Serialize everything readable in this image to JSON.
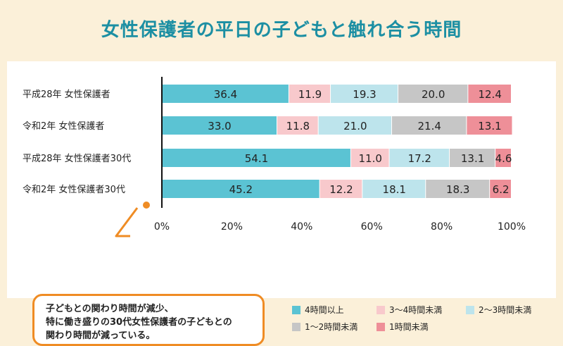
{
  "title": "女性保護者の平日の子どもと触れ合う時間",
  "callout": {
    "line1": "子どもとの関わり時間が減少、",
    "line2": "特に働き盛りの30代女性保護者の子どもとの",
    "line3": "関わり時間が減っている。"
  },
  "chart_data": {
    "type": "bar",
    "orientation": "horizontal-stacked-100",
    "categories": [
      "平成28年 女性保護者",
      "令和2年 女性保護者",
      "平成28年 女性保護者30代",
      "令和2年 女性保護者30代"
    ],
    "series": [
      {
        "name": "4時間以上",
        "color": "#5bc3d3",
        "values": [
          36.4,
          33.0,
          54.1,
          45.2
        ]
      },
      {
        "name": "3〜4時間未満",
        "color": "#f8c9cc",
        "values": [
          11.9,
          11.8,
          11.0,
          12.2
        ]
      },
      {
        "name": "2〜3時間未満",
        "color": "#bde4ec",
        "values": [
          19.3,
          21.0,
          17.2,
          18.1
        ]
      },
      {
        "name": "1〜2時間未満",
        "color": "#c6c6c6",
        "values": [
          20.0,
          21.4,
          13.1,
          18.3
        ]
      },
      {
        "name": "1時間未満",
        "color": "#ee8f98",
        "values": [
          12.4,
          13.1,
          4.6,
          6.2
        ]
      }
    ],
    "x_ticks": [
      "0%",
      "20%",
      "40%",
      "60%",
      "80%",
      "100%"
    ],
    "xlim": [
      0,
      100
    ],
    "legend_position": "bottom-right"
  }
}
